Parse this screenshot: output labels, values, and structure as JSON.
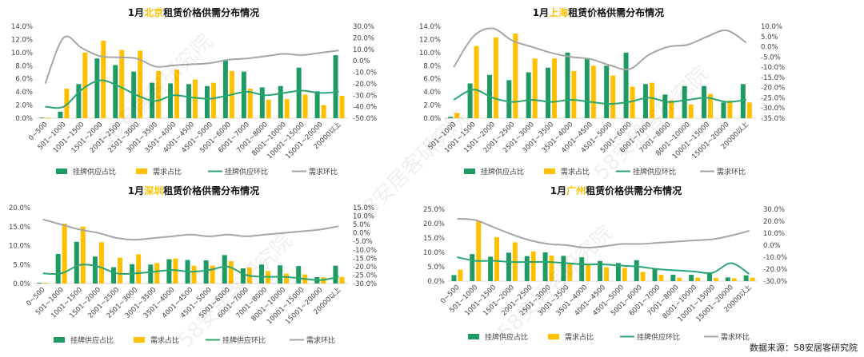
{
  "colors": {
    "supply": "#1e9b63",
    "demand": "#ffc000",
    "supply_mom": "#2aa672",
    "demand_mom": "#a6a6a6",
    "highlight": "#ffc000",
    "title": "#111111"
  },
  "source": "数据来源：58安居客研究院",
  "watermark": "58安居客研究院",
  "legend": [
    "挂牌供应占比",
    "需求占比",
    "挂牌供应环比",
    "需求环比"
  ],
  "chart_data": [
    {
      "type": "bar",
      "title_prefix": "1月",
      "title_city": "北京",
      "title_suffix": "租赁价格供需分布情况",
      "categories": [
        "0~500",
        "501~1000",
        "1001~1500",
        "1501~2000",
        "2001~2500",
        "2501~3000",
        "3001~3500",
        "3501~4000",
        "4001~4500",
        "4501~5000",
        "5001~6000",
        "6001~7000",
        "7001~8000",
        "8001~10000",
        "10001~15000",
        "15001~20000",
        "20000以上"
      ],
      "left_ticks": [
        "0.0%",
        "2.0%",
        "4.0%",
        "6.0%",
        "8.0%",
        "10.0%",
        "12.0%",
        "14.0%"
      ],
      "right_ticks": [
        "-50.0%",
        "-40.0%",
        "-30.0%",
        "-20.0%",
        "-10.0%",
        "0.0%",
        "10.0%",
        "20.0%",
        "30.0%"
      ],
      "ylim": [
        0,
        14
      ],
      "y2lim": [
        -50,
        30
      ],
      "series": [
        {
          "name": "挂牌供应占比",
          "values": [
            0.1,
            1.0,
            5.2,
            9.1,
            8.1,
            7.1,
            5.4,
            5.3,
            5.2,
            4.9,
            8.9,
            7.1,
            4.7,
            4.9,
            7.7,
            4.1,
            9.6
          ]
        },
        {
          "name": "需求占比",
          "values": [
            0.1,
            4.5,
            10.0,
            11.8,
            10.4,
            10.3,
            7.2,
            7.4,
            5.9,
            5.4,
            7.2,
            4.5,
            2.8,
            2.9,
            3.6,
            2.0,
            3.4
          ]
        },
        {
          "name": "挂牌供应环比",
          "values": [
            -40,
            -40,
            -25,
            -17,
            -22,
            -30,
            -35,
            -30,
            -32,
            -33,
            -30,
            -27,
            -30,
            -28,
            -26,
            -28,
            -27
          ]
        },
        {
          "name": "需求环比",
          "values": [
            -20,
            20,
            11,
            4,
            3,
            2,
            -5,
            -4,
            -3,
            -2,
            1,
            2,
            4,
            6,
            5,
            7,
            9
          ]
        }
      ]
    },
    {
      "type": "bar",
      "title_prefix": "1月",
      "title_city": "上海",
      "title_suffix": "租赁价格供需分布情况",
      "categories": [
        "501~1000",
        "1001~1500",
        "1501~2000",
        "2001~2500",
        "2501~3000",
        "3001~3500",
        "3501~4000",
        "4001~4500",
        "4501~5000",
        "5001~6000",
        "6001~7000",
        "7001~8000",
        "8001~10000",
        "10001~15000",
        "15001~20000",
        "20000以上"
      ],
      "left_ticks": [
        "0.0%",
        "2.0%",
        "4.0%",
        "6.0%",
        "8.0%",
        "10.0%",
        "12.0%",
        "14.0%"
      ],
      "right_ticks": [
        "-35.0%",
        "-30.0%",
        "-25.0%",
        "-20.0%",
        "-15.0%",
        "-10.0%",
        "-5.0%",
        "0.0%",
        "5.0%",
        "10.0%"
      ],
      "ylim": [
        0,
        14
      ],
      "y2lim": [
        -35,
        10
      ],
      "series": [
        {
          "name": "挂牌供应占比",
          "values": [
            0.2,
            5.3,
            6.6,
            5.8,
            7.0,
            7.7,
            10.0,
            9.2,
            8.0,
            10.0,
            5.2,
            3.6,
            4.9,
            4.9,
            2.4,
            5.2
          ]
        },
        {
          "name": "需求占比",
          "values": [
            0.8,
            11.0,
            12.3,
            12.9,
            9.1,
            9.1,
            7.2,
            8.0,
            6.5,
            4.8,
            5.4,
            2.7,
            2.1,
            3.7,
            2.7,
            2.4
          ]
        },
        {
          "name": "挂牌供应环比",
          "values": [
            -26,
            -21,
            -25,
            -27,
            -26,
            -27,
            -26,
            -27,
            -28,
            -27,
            -25,
            -27,
            -26,
            -25,
            -27,
            -26
          ]
        },
        {
          "name": "需求环比",
          "values": [
            -10,
            5,
            9,
            3,
            0,
            -3,
            -5,
            -6,
            -9,
            -11,
            -4,
            0,
            1,
            5,
            8,
            2
          ]
        }
      ]
    },
    {
      "type": "bar",
      "title_prefix": "1月",
      "title_city": "深圳",
      "title_suffix": "租赁价格供需分布情况",
      "categories": [
        "0~500",
        "501~1000",
        "1001~1500",
        "1501~2000",
        "2001~2500",
        "2501~3000",
        "3001~3500",
        "3501~4000",
        "4001~4500",
        "4501~5000",
        "5001~6000",
        "6001~7000",
        "7001~8000",
        "8001~10000",
        "10001~15000",
        "15001~20000",
        "20000以上"
      ],
      "left_ticks": [
        "0.0%",
        "5.0%",
        "10.0%",
        "15.0%",
        "20.0%"
      ],
      "right_ticks": [
        "-30.0%",
        "-25.0%",
        "-20.0%",
        "-15.0%",
        "-10.0%",
        "-5.0%",
        "0.0%",
        "5.0%",
        "10.0%",
        "15.0%"
      ],
      "ylim": [
        0,
        20
      ],
      "y2lim": [
        -30,
        15
      ],
      "series": [
        {
          "name": "挂牌供应占比",
          "values": [
            0.2,
            7.8,
            11.0,
            7.1,
            4.3,
            5.1,
            5.0,
            6.4,
            6.2,
            6.1,
            7.5,
            4.0,
            5.0,
            4.8,
            4.6,
            1.7,
            4.7
          ]
        },
        {
          "name": "需求占比",
          "values": [
            0.2,
            15.8,
            15.0,
            10.9,
            6.8,
            7.7,
            5.4,
            6.6,
            4.7,
            4.7,
            5.9,
            4.2,
            3.3,
            2.6,
            2.4,
            1.6,
            1.7
          ]
        },
        {
          "name": "挂牌供应环比",
          "values": [
            -24,
            -24,
            -19,
            -20,
            -24,
            -24,
            -23,
            -22,
            -23,
            -22,
            -20,
            -25,
            -26,
            -26,
            -27,
            -28,
            -26
          ]
        },
        {
          "name": "需求环比",
          "values": [
            8,
            5,
            2,
            0,
            -3,
            -4,
            -3,
            -2,
            -1,
            -2,
            -1,
            -2,
            -1,
            0,
            1,
            2,
            4
          ]
        }
      ]
    },
    {
      "type": "bar",
      "title_prefix": "1月",
      "title_city": "广州",
      "title_suffix": "租赁价格供需分布情况",
      "categories": [
        "0~500",
        "501~1000",
        "1001~1500",
        "1501~2000",
        "2001~2500",
        "2501~3000",
        "3001~3500",
        "3501~4000",
        "4001~4500",
        "4501~5000",
        "5001~6000",
        "6001~7000",
        "7001~8000",
        "8001~10000",
        "10001~15000",
        "15001~20000",
        "20000以上"
      ],
      "left_ticks": [
        "0.0%",
        "5.0%",
        "10.0%",
        "15.0%",
        "20.0%",
        "25.0%"
      ],
      "right_ticks": [
        "-30.0%",
        "-20.0%",
        "-10.0%",
        "0.0%",
        "10.0%",
        "20.0%",
        "30.0%"
      ],
      "ylim": [
        0,
        25
      ],
      "y2lim": [
        -30,
        30
      ],
      "series": [
        {
          "name": "挂牌供应占比",
          "values": [
            2.1,
            9.4,
            8.5,
            9.9,
            8.7,
            10.0,
            8.8,
            8.3,
            7.0,
            6.3,
            7.3,
            4.5,
            2.2,
            2.2,
            3.0,
            1.3,
            2.0
          ]
        },
        {
          "name": "需求占比",
          "values": [
            4.0,
            20.9,
            15.3,
            13.5,
            10.3,
            8.9,
            6.1,
            5.9,
            4.8,
            4.6,
            3.2,
            2.2,
            1.2,
            1.2,
            1.1,
            1.0,
            1.2
          ]
        },
        {
          "name": "挂牌供应环比",
          "values": [
            -10,
            -13,
            -13,
            -14,
            -14,
            -14,
            -15,
            -16,
            -16,
            -17,
            -18,
            -20,
            -21,
            -22,
            -23,
            -15,
            -24
          ]
        },
        {
          "name": "需求环比",
          "values": [
            22,
            21,
            15,
            9,
            4,
            1,
            0,
            -2,
            -1,
            1,
            1,
            2,
            3,
            4,
            5,
            8,
            12
          ]
        }
      ]
    }
  ]
}
